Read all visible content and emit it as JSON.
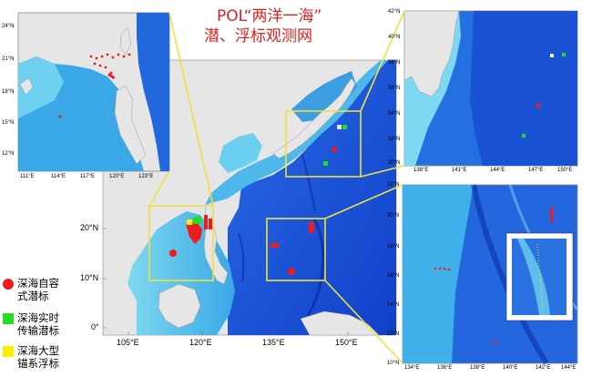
{
  "title": {
    "line1": "POL“两洋一海”",
    "line2": "潜、浮标观测网"
  },
  "legend": [
    {
      "label": "深海自容式潜标",
      "symbol": "red-dot",
      "color": "#ee1c1c"
    },
    {
      "label": "深海实时传输潜标",
      "symbol": "green-square",
      "color": "#22dd22"
    },
    {
      "label": "深海大型锚系浮标",
      "symbol": "yellow-square",
      "color": "#ffee00"
    }
  ],
  "main_map": {
    "lon_labels": [
      "105°E",
      "120°E",
      "135°E",
      "150°E"
    ],
    "lat_labels": [
      "20°N",
      "10°N",
      "0°"
    ]
  },
  "inset_scs": {
    "lon_labels": [
      "111°E",
      "114°E",
      "117°E",
      "120°E",
      "123°E"
    ],
    "lat_labels": [
      "24°N",
      "21°N",
      "18°N",
      "15°N",
      "12°N"
    ]
  },
  "inset_kuroshio": {
    "lon_labels": [
      "138°E",
      "141°E",
      "144°E",
      "147°E",
      "150°E"
    ],
    "lat_labels": [
      "42°N",
      "40°N",
      "38°N",
      "36°N",
      "34°N",
      "32°N",
      "30°N"
    ]
  },
  "inset_wpac": {
    "lon_labels": [
      "134°E",
      "136°E",
      "138°E",
      "140°E",
      "142°E",
      "144°E"
    ],
    "lat_labels": [
      "22°N",
      "20°N",
      "18°N",
      "16°N",
      "14°N",
      "12°N",
      "10°N"
    ]
  },
  "colors": {
    "deep_ocean": "#1550d8",
    "shelf": "#5ac8ec",
    "land": "#e6e6e6",
    "frame": "#f0e040",
    "title": "#e02020"
  }
}
